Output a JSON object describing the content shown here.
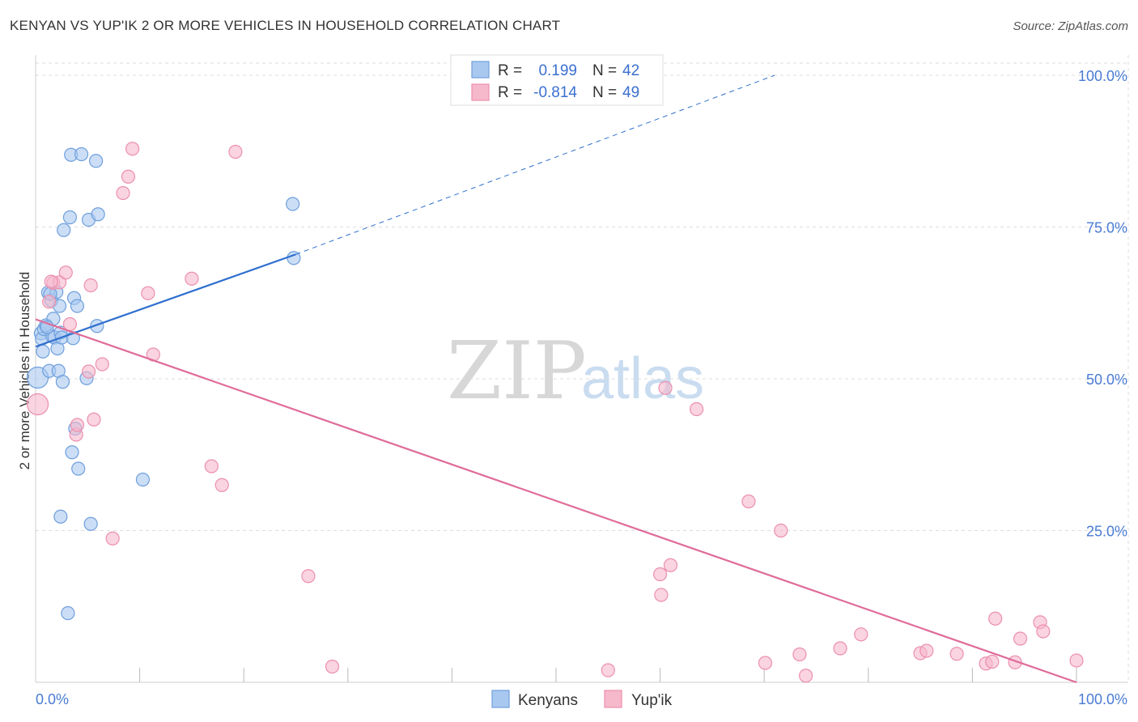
{
  "header": {
    "title": "KENYAN VS YUP'IK 2 OR MORE VEHICLES IN HOUSEHOLD CORRELATION CHART",
    "source": "Source: ZipAtlas.com"
  },
  "watermark": {
    "zip": "ZIP",
    "atlas": "atlas"
  },
  "colors": {
    "blue_fill": "#a9c8f0",
    "blue_stroke": "#6f9fdc",
    "blue_line": "#2f6fce",
    "pink_fill": "#f6b8cb",
    "pink_stroke": "#ec8fae",
    "pink_line": "#e06c99",
    "grid": "#dddddd",
    "tick_label": "#4a7bd4"
  },
  "legend": {
    "series": [
      {
        "r_label": "R =",
        "r_value": "0.199",
        "n_label": "N =",
        "n_value": "42"
      },
      {
        "r_label": "R =",
        "r_value": "-0.814",
        "n_label": "N =",
        "n_value": "49"
      }
    ]
  },
  "bottom_legend": {
    "items": [
      "Kenyans",
      "Yup'ik"
    ]
  },
  "chart_data": {
    "type": "scatter",
    "xlabel": "",
    "ylabel": "2 or more Vehicles in Household",
    "xlim": [
      0,
      100
    ],
    "ylim": [
      0,
      102
    ],
    "x_tick_labels": [
      {
        "value": 0,
        "label": "0.0%"
      },
      {
        "value": 100,
        "label": "100.0%"
      }
    ],
    "y_tick_labels": [
      {
        "value": 25,
        "label": "25.0%"
      },
      {
        "value": 50,
        "label": "50.0%"
      },
      {
        "value": 75,
        "label": "75.0%"
      },
      {
        "value": 100,
        "label": "100.0%"
      }
    ],
    "x_minor_ticks": [
      10,
      20,
      30,
      40,
      50,
      60,
      70,
      80,
      90,
      100
    ],
    "series": [
      {
        "name": "Kenyans",
        "color": "#a9c8f0",
        "points": [
          [
            0.2,
            50.2
          ],
          [
            0.5,
            57.5
          ],
          [
            0.6,
            56.6
          ],
          [
            0.7,
            54.5
          ],
          [
            0.8,
            58.2
          ],
          [
            1.0,
            58.8
          ],
          [
            1.2,
            64.2
          ],
          [
            1.3,
            51.3
          ],
          [
            1.5,
            62.9
          ],
          [
            1.6,
            57.0
          ],
          [
            1.7,
            59.9
          ],
          [
            1.8,
            56.8
          ],
          [
            2.0,
            64.3
          ],
          [
            2.1,
            55.0
          ],
          [
            2.2,
            51.3
          ],
          [
            2.4,
            57.6
          ],
          [
            2.5,
            56.8
          ],
          [
            2.6,
            49.5
          ],
          [
            2.7,
            74.5
          ],
          [
            3.3,
            76.6
          ],
          [
            3.4,
            86.9
          ],
          [
            3.5,
            37.9
          ],
          [
            3.6,
            56.7
          ],
          [
            3.7,
            63.3
          ],
          [
            3.8,
            41.8
          ],
          [
            4.1,
            35.2
          ],
          [
            4.4,
            87.0
          ],
          [
            4.9,
            50.1
          ],
          [
            5.1,
            76.2
          ],
          [
            5.3,
            26.1
          ],
          [
            5.8,
            85.9
          ],
          [
            5.9,
            58.7
          ],
          [
            6.0,
            77.1
          ],
          [
            10.3,
            33.4
          ],
          [
            24.7,
            78.8
          ],
          [
            24.8,
            69.9
          ],
          [
            2.3,
            62.0
          ],
          [
            1.1,
            58.5
          ],
          [
            4.0,
            62.0
          ],
          [
            2.4,
            27.3
          ],
          [
            3.1,
            11.4
          ],
          [
            1.4,
            64.0
          ]
        ]
      },
      {
        "name": "Yup'ik",
        "color": "#f6b8cb",
        "points": [
          [
            0.2,
            45.8
          ],
          [
            1.3,
            62.7
          ],
          [
            1.7,
            65.8
          ],
          [
            2.3,
            65.9
          ],
          [
            2.9,
            67.5
          ],
          [
            3.3,
            59.0
          ],
          [
            3.9,
            40.8
          ],
          [
            4.0,
            42.4
          ],
          [
            5.1,
            51.2
          ],
          [
            5.3,
            65.4
          ],
          [
            5.6,
            43.3
          ],
          [
            6.4,
            52.4
          ],
          [
            7.4,
            23.7
          ],
          [
            8.4,
            80.6
          ],
          [
            8.9,
            83.3
          ],
          [
            9.3,
            87.9
          ],
          [
            10.8,
            64.1
          ],
          [
            11.3,
            54.0
          ],
          [
            15.0,
            66.5
          ],
          [
            16.9,
            35.6
          ],
          [
            17.9,
            32.5
          ],
          [
            19.2,
            87.4
          ],
          [
            26.2,
            17.5
          ],
          [
            28.5,
            2.6
          ],
          [
            55.0,
            2.0
          ],
          [
            60.0,
            17.8
          ],
          [
            60.1,
            14.4
          ],
          [
            60.5,
            48.5
          ],
          [
            61.0,
            19.3
          ],
          [
            63.5,
            45.0
          ],
          [
            68.5,
            29.8
          ],
          [
            70.1,
            3.2
          ],
          [
            71.6,
            25.0
          ],
          [
            73.4,
            4.6
          ],
          [
            74.0,
            1.1
          ],
          [
            77.3,
            5.6
          ],
          [
            79.3,
            7.9
          ],
          [
            85.0,
            4.8
          ],
          [
            85.6,
            5.2
          ],
          [
            88.5,
            4.7
          ],
          [
            91.3,
            3.1
          ],
          [
            91.9,
            3.4
          ],
          [
            92.2,
            10.5
          ],
          [
            94.1,
            3.3
          ],
          [
            94.6,
            7.2
          ],
          [
            96.5,
            9.9
          ],
          [
            96.8,
            8.4
          ],
          [
            100.0,
            3.6
          ],
          [
            1.5,
            66.0
          ]
        ]
      }
    ],
    "trend_lines": [
      {
        "series": "Kenyans",
        "x1": 0,
        "y1": 55.3,
        "x2": 25.0,
        "y2": 70.5,
        "dashed_to": {
          "x": 71.0,
          "y": 100.0
        }
      },
      {
        "series": "Yup'ik",
        "x1": 0,
        "y1": 59.8,
        "x2": 100.0,
        "y2": 0.0
      }
    ]
  }
}
